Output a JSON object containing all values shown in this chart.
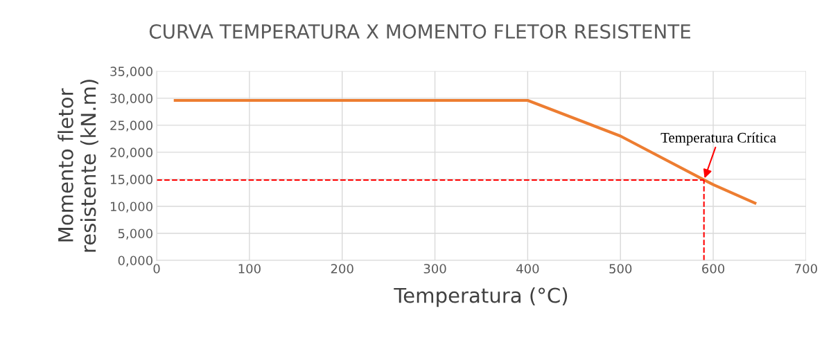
{
  "chart_data": {
    "type": "line",
    "title": "CURVA TEMPERATURA X MOMENTO FLETOR RESISTENTE",
    "xlabel": "Temperatura (°C)",
    "ylabel": "Momento fletor resistente (kN.m)",
    "x": [
      20,
      400,
      500,
      600,
      645
    ],
    "series": [
      {
        "color": "#ed7d31",
        "values": [
          29600,
          29600,
          23000,
          14000,
          10600
        ]
      }
    ],
    "xlim": [
      0,
      700
    ],
    "xticks": [
      0,
      100,
      200,
      300,
      400,
      500,
      600,
      700
    ],
    "ylim": [
      0,
      35000
    ],
    "yticks": [
      {
        "value": 0,
        "label": "0,000"
      },
      {
        "value": 5000,
        "label": "5,000"
      },
      {
        "value": 10000,
        "label": "10,000"
      },
      {
        "value": 15000,
        "label": "15,000"
      },
      {
        "value": 20000,
        "label": "20,000"
      },
      {
        "value": 25000,
        "label": "25,000"
      },
      {
        "value": 30000,
        "label": "30,000"
      },
      {
        "value": 35000,
        "label": "35,000"
      }
    ],
    "grid": true,
    "legend": false,
    "marker": "none",
    "line_style": "solid",
    "ref_lines": [
      {
        "axis": "y",
        "value": 14850,
        "color": "#ff0000",
        "line_style": "dashed"
      },
      {
        "axis": "x",
        "value": 590,
        "color": "#ff0000",
        "line_style": "dashed"
      }
    ],
    "annotations": [
      {
        "text": "Temperatura Crítica",
        "x": 590,
        "y": 14850
      }
    ]
  }
}
